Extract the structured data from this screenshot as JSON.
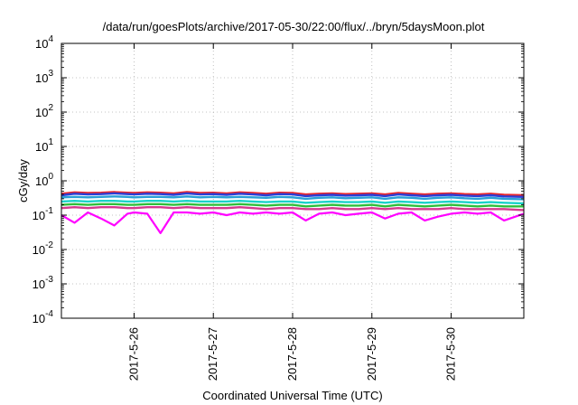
{
  "chart_data": {
    "type": "line",
    "title": "/data/run/goesPlots/archive/2017-05-30/22:00/flux/../bryn/5daysMoon.plot",
    "xlabel": "Coordinated Universal Time (UTC)",
    "ylabel": "cGy/day",
    "scale": {
      "y": "log"
    },
    "x_range": [
      "2017-05-25T02:00",
      "2017-05-30T22:00"
    ],
    "ylim": [
      0.0001,
      10000
    ],
    "x_ticks": [
      "2017-5-26",
      "2017-5-27",
      "2017-5-28",
      "2017-5-29",
      "2017-5-30"
    ],
    "y_ticks": [
      {
        "value": 0.0001,
        "base": "10",
        "exp": "-4"
      },
      {
        "value": 0.001,
        "base": "10",
        "exp": "-3"
      },
      {
        "value": 0.01,
        "base": "10",
        "exp": "-2"
      },
      {
        "value": 0.1,
        "base": "10",
        "exp": "-1"
      },
      {
        "value": 1,
        "base": "10",
        "exp": "0"
      },
      {
        "value": 10,
        "base": "10",
        "exp": "1"
      },
      {
        "value": 100,
        "base": "10",
        "exp": "2"
      },
      {
        "value": 1000,
        "base": "10",
        "exp": "3"
      },
      {
        "value": 10000,
        "base": "10",
        "exp": "4"
      }
    ],
    "grid": true,
    "legend": "none",
    "series_x": [
      "2017-05-25T02:00",
      "2017-05-25T06:00",
      "2017-05-25T10:00",
      "2017-05-25T14:00",
      "2017-05-25T18:00",
      "2017-05-25T22:00",
      "2017-05-26T00:00",
      "2017-05-26T04:00",
      "2017-05-26T08:00",
      "2017-05-26T12:00",
      "2017-05-26T16:00",
      "2017-05-26T20:00",
      "2017-05-27T00:00",
      "2017-05-27T04:00",
      "2017-05-27T08:00",
      "2017-05-27T12:00",
      "2017-05-27T16:00",
      "2017-05-27T20:00",
      "2017-05-28T00:00",
      "2017-05-28T04:00",
      "2017-05-28T08:00",
      "2017-05-28T12:00",
      "2017-05-28T16:00",
      "2017-05-28T20:00",
      "2017-05-29T00:00",
      "2017-05-29T04:00",
      "2017-05-29T08:00",
      "2017-05-29T12:00",
      "2017-05-29T16:00",
      "2017-05-29T20:00",
      "2017-05-30T00:00",
      "2017-05-30T04:00",
      "2017-05-30T08:00",
      "2017-05-30T12:00",
      "2017-05-30T16:00",
      "2017-05-30T22:00"
    ],
    "series": [
      {
        "color": "#e8262d",
        "values": [
          0.42,
          0.46,
          0.44,
          0.45,
          0.47,
          0.45,
          0.44,
          0.46,
          0.45,
          0.43,
          0.47,
          0.44,
          0.45,
          0.43,
          0.46,
          0.44,
          0.42,
          0.45,
          0.44,
          0.4,
          0.42,
          0.43,
          0.41,
          0.42,
          0.43,
          0.4,
          0.44,
          0.42,
          0.4,
          0.42,
          0.43,
          0.41,
          0.4,
          0.42,
          0.39,
          0.38
        ]
      },
      {
        "color": "#2a3fd6",
        "values": [
          0.38,
          0.42,
          0.4,
          0.41,
          0.43,
          0.41,
          0.4,
          0.42,
          0.41,
          0.39,
          0.43,
          0.4,
          0.41,
          0.39,
          0.42,
          0.4,
          0.38,
          0.41,
          0.4,
          0.36,
          0.38,
          0.39,
          0.37,
          0.38,
          0.39,
          0.36,
          0.4,
          0.38,
          0.36,
          0.38,
          0.39,
          0.37,
          0.36,
          0.38,
          0.35,
          0.34
        ]
      },
      {
        "color": "#2aa0d6",
        "values": [
          0.33,
          0.34,
          0.33,
          0.34,
          0.35,
          0.34,
          0.33,
          0.34,
          0.34,
          0.33,
          0.35,
          0.33,
          0.34,
          0.33,
          0.34,
          0.33,
          0.32,
          0.34,
          0.33,
          0.3,
          0.32,
          0.33,
          0.31,
          0.32,
          0.33,
          0.3,
          0.33,
          0.32,
          0.3,
          0.32,
          0.33,
          0.31,
          0.3,
          0.32,
          0.3,
          0.29
        ]
      },
      {
        "color": "#19d3c8",
        "values": [
          0.25,
          0.26,
          0.25,
          0.26,
          0.26,
          0.25,
          0.25,
          0.26,
          0.26,
          0.25,
          0.26,
          0.25,
          0.25,
          0.25,
          0.26,
          0.25,
          0.24,
          0.25,
          0.25,
          0.23,
          0.24,
          0.25,
          0.24,
          0.24,
          0.25,
          0.23,
          0.25,
          0.24,
          0.23,
          0.24,
          0.25,
          0.24,
          0.23,
          0.24,
          0.23,
          0.22
        ]
      },
      {
        "color": "#2dbf3a",
        "values": [
          0.2,
          0.21,
          0.2,
          0.21,
          0.21,
          0.2,
          0.2,
          0.21,
          0.21,
          0.2,
          0.21,
          0.2,
          0.2,
          0.2,
          0.21,
          0.2,
          0.19,
          0.2,
          0.2,
          0.18,
          0.19,
          0.2,
          0.19,
          0.19,
          0.2,
          0.18,
          0.2,
          0.19,
          0.18,
          0.19,
          0.2,
          0.19,
          0.18,
          0.19,
          0.18,
          0.18
        ]
      },
      {
        "color": "#d43a8e",
        "values": [
          0.16,
          0.17,
          0.16,
          0.17,
          0.17,
          0.16,
          0.16,
          0.17,
          0.17,
          0.16,
          0.17,
          0.16,
          0.16,
          0.16,
          0.17,
          0.16,
          0.15,
          0.16,
          0.16,
          0.15,
          0.15,
          0.16,
          0.15,
          0.15,
          0.16,
          0.15,
          0.16,
          0.15,
          0.15,
          0.15,
          0.16,
          0.15,
          0.15,
          0.15,
          0.15,
          0.14
        ]
      },
      {
        "color": "#ff00ff",
        "values": [
          0.1,
          0.06,
          0.12,
          0.08,
          0.05,
          0.11,
          0.12,
          0.11,
          0.03,
          0.12,
          0.12,
          0.11,
          0.12,
          0.1,
          0.12,
          0.11,
          0.12,
          0.11,
          0.12,
          0.07,
          0.11,
          0.12,
          0.1,
          0.11,
          0.12,
          0.08,
          0.11,
          0.12,
          0.07,
          0.09,
          0.11,
          0.12,
          0.11,
          0.12,
          0.07,
          0.11
        ]
      }
    ]
  }
}
